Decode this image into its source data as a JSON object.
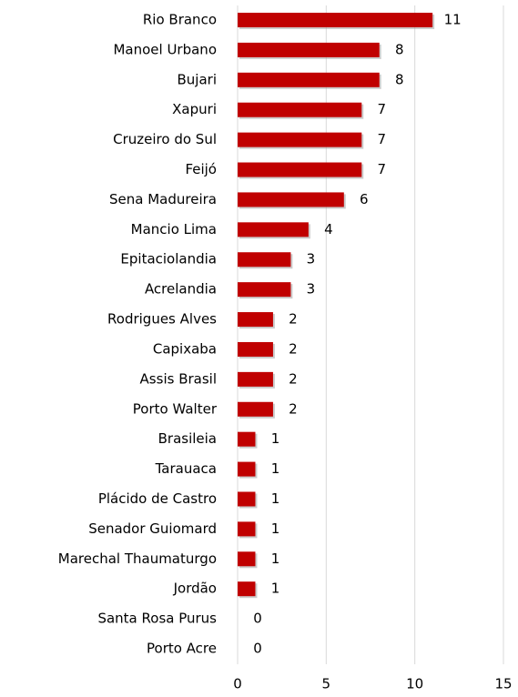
{
  "chart_data": {
    "type": "bar",
    "orientation": "horizontal",
    "categories": [
      "Rio Branco",
      "Manoel Urbano",
      "Bujari",
      "Xapuri",
      "Cruzeiro do Sul",
      "Feijó",
      "Sena Madureira",
      "Mancio Lima",
      "Epitaciolandia",
      "Acrelandia",
      "Rodrigues Alves",
      "Capixaba",
      "Assis Brasil",
      "Porto Walter",
      "Brasileia",
      "Tarauaca",
      "Plácido de Castro",
      "Senador Guiomard",
      "Marechal Thaumaturgo",
      "Jordão",
      "Santa Rosa Purus",
      "Porto Acre"
    ],
    "values": [
      11,
      8,
      8,
      7,
      7,
      7,
      6,
      4,
      3,
      3,
      2,
      2,
      2,
      2,
      1,
      1,
      1,
      1,
      1,
      1,
      0,
      0
    ],
    "color": "#c00000",
    "xlim": [
      0,
      15
    ],
    "xticks": [
      0,
      5,
      10,
      15
    ],
    "grid": true
  }
}
